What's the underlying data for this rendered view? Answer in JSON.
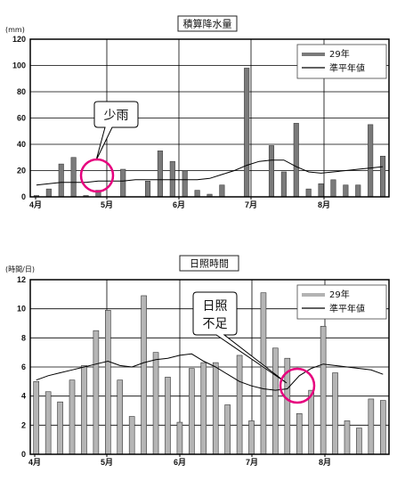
{
  "chart_data": [
    {
      "type": "bar",
      "title": "積算降水量",
      "unit_label": "(mm)",
      "ylim": [
        0,
        120
      ],
      "y_ticks": [
        "0",
        "20",
        "40",
        "60",
        "80",
        "100",
        "120"
      ],
      "x_tick_labels": [
        "4月",
        "5月",
        "6月",
        "7月",
        "8月"
      ],
      "grid": true,
      "legend_position": "top-right",
      "series": [
        {
          "name": "29年",
          "kind": "bar",
          "values": [
            1,
            6,
            25,
            30,
            1,
            5,
            0,
            21,
            0,
            12,
            35,
            27,
            20,
            5,
            2,
            9,
            0,
            98,
            0,
            39,
            19,
            56,
            6,
            10,
            13,
            9,
            9,
            55,
            31
          ]
        },
        {
          "name": "準平年値",
          "kind": "line",
          "values": [
            9,
            10,
            11,
            11,
            11,
            12,
            12,
            12,
            13,
            13,
            13,
            13,
            13,
            13,
            14,
            17,
            20,
            24,
            27,
            28,
            28,
            23,
            19,
            18,
            19,
            20,
            21,
            22,
            23
          ]
        }
      ],
      "annotation": {
        "text": "少雨"
      }
    },
    {
      "type": "bar",
      "title": "日照時間",
      "unit_label": "(時間/日)",
      "ylim": [
        0,
        12
      ],
      "y_ticks": [
        "0",
        "2",
        "4",
        "6",
        "8",
        "10",
        "12"
      ],
      "x_tick_labels": [
        "4月",
        "5月",
        "6月",
        "7月",
        "8月"
      ],
      "grid": true,
      "legend_position": "top-right",
      "series": [
        {
          "name": "29年",
          "kind": "bar",
          "values": [
            5.0,
            4.3,
            3.6,
            5.1,
            6.1,
            8.5,
            9.9,
            5.1,
            2.6,
            10.9,
            7.0,
            5.3,
            2.2,
            5.9,
            6.3,
            6.3,
            3.4,
            6.8,
            2.3,
            11.1,
            7.3,
            6.6,
            2.8,
            4.4,
            8.8,
            5.6,
            2.3,
            1.8,
            3.8,
            3.7
          ]
        },
        {
          "name": "準平年値",
          "kind": "line",
          "values": [
            5.1,
            5.4,
            5.6,
            5.8,
            6.0,
            6.2,
            6.4,
            6.1,
            6.0,
            6.3,
            6.5,
            6.6,
            6.8,
            6.9,
            6.4,
            6.0,
            5.5,
            5.0,
            4.7,
            4.5,
            4.4,
            4.5,
            5.4,
            5.9,
            6.2,
            6.1,
            6.0,
            5.9,
            5.8,
            5.5
          ]
        }
      ],
      "annotation": {
        "text_lines": [
          "日照",
          "不足"
        ]
      }
    }
  ]
}
